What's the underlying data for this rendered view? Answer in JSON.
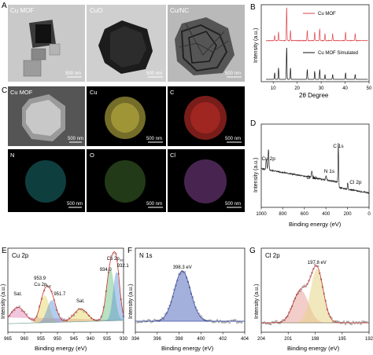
{
  "colors": {
    "xrd_mof": "#e0434b",
    "xrd_sim": "#111111",
    "xps_fit": "#222222",
    "cu_map": "#d4c64a",
    "c_map": "#c8302a",
    "n_map": "#2ab1b5",
    "o_map": "#6fbf4d",
    "cl_map": "#b35cc9",
    "n1s_fill": "#5a6fc0",
    "cl_fill_a": "#e8a5a0",
    "cl_fill_b": "#e9d68a",
    "cu_fill_pink": "#e27fb5",
    "cu_fill_yellow": "#e3d35a",
    "cu_fill_blue": "#5b8fd8",
    "cu_fill_green": "#63c07a"
  },
  "panels": {
    "A": {
      "letter": "A",
      "images": [
        {
          "label": "Cu MOF",
          "scale": "500 nm"
        },
        {
          "label": "CuO",
          "scale": "500 nm"
        },
        {
          "label": "Cu/NC",
          "scale": "500 nm"
        }
      ]
    },
    "C": {
      "letter": "C",
      "maps": [
        {
          "label": "Cu MOF",
          "scale": "500 nm"
        },
        {
          "label": "Cu",
          "scale": "500 nm"
        },
        {
          "label": "C",
          "scale": "500 nm"
        },
        {
          "label": "N",
          "scale": "500 nm"
        },
        {
          "label": "O",
          "scale": "500 nm"
        },
        {
          "label": "Cl",
          "scale": "500 nm"
        }
      ]
    }
  },
  "chart_data": [
    {
      "panel": "B",
      "type": "line",
      "xlabel": "2θ Degree",
      "ylabel": "Intensity (a.u.)",
      "xlim": [
        5,
        50
      ],
      "xticks": [
        "10",
        "20",
        "30",
        "40",
        "50"
      ],
      "legend": "top-right",
      "series": [
        {
          "name": "Cu MOF",
          "peaks": [
            [
              10.6,
              0.15
            ],
            [
              12.2,
              0.25
            ],
            [
              15.6,
              1.0
            ],
            [
              17.2,
              0.3
            ],
            [
              24.2,
              0.3
            ],
            [
              27.3,
              0.25
            ],
            [
              29.4,
              0.35
            ],
            [
              31.6,
              0.2
            ],
            [
              34.8,
              0.2
            ],
            [
              40.2,
              0.25
            ],
            [
              44.2,
              0.2
            ]
          ]
        },
        {
          "name": "Cu MOF Simulated",
          "peaks": [
            [
              10.6,
              0.2
            ],
            [
              12.2,
              0.35
            ],
            [
              15.6,
              1.0
            ],
            [
              17.2,
              0.35
            ],
            [
              24.2,
              0.3
            ],
            [
              27.3,
              0.25
            ],
            [
              29.4,
              0.3
            ],
            [
              31.6,
              0.15
            ],
            [
              34.8,
              0.15
            ],
            [
              40.2,
              0.2
            ],
            [
              44.2,
              0.15
            ]
          ]
        }
      ]
    },
    {
      "panel": "D",
      "type": "line",
      "xlabel": "Binding energy (eV)",
      "ylabel": "Intensity (a.u.)",
      "xlim": [
        1000,
        0
      ],
      "xticks": [
        "1000",
        "800",
        "600",
        "400",
        "200",
        "0"
      ],
      "annotations": [
        {
          "text": "Cu 2p",
          "x": 933
        },
        {
          "text": "O 1s",
          "x": 531
        },
        {
          "text": "N 1s",
          "x": 398
        },
        {
          "text": "C 1s",
          "x": 285
        },
        {
          "text": "Cl 2p",
          "x": 198
        }
      ]
    },
    {
      "panel": "E",
      "type": "line",
      "title": "Cu 2p",
      "xlabel": "Binding energy (eV)",
      "ylabel": "Intensity (a.u.)",
      "xlim": [
        965,
        930
      ],
      "xticks": [
        "965",
        "960",
        "955",
        "950",
        "945",
        "940",
        "935",
        "930"
      ],
      "peaks": [
        {
          "center": 962.0,
          "height": 0.25,
          "label": "Sat."
        },
        {
          "center": 953.9,
          "height": 0.42,
          "label": "953.9"
        },
        {
          "center": 951.7,
          "height": 0.34,
          "label": "951.7"
        },
        {
          "center": 943.0,
          "height": 0.2,
          "label": "Sat."
        },
        {
          "center": 934.0,
          "height": 0.8,
          "label": "934.0"
        },
        {
          "center": 932.1,
          "height": 0.75,
          "label": "932.1"
        }
      ],
      "annotations": [
        {
          "text": "Cu 2p",
          "sub": "1/2"
        },
        {
          "text": "Cu 2p",
          "sub": "3/2"
        }
      ]
    },
    {
      "panel": "F",
      "type": "line",
      "title": "N 1s",
      "xlabel": "Binding energy (eV)",
      "ylabel": "Intensity (a.u.)",
      "xlim": [
        394,
        404
      ],
      "xticks": [
        "394",
        "396",
        "398",
        "400",
        "402",
        "404"
      ],
      "peaks": [
        {
          "center": 398.3,
          "height": 1.0,
          "label": "398.3 eV"
        }
      ]
    },
    {
      "panel": "G",
      "type": "line",
      "title": "Cl 2p",
      "xlabel": "Binding energy (eV)",
      "ylabel": "Intensity (a.u.)",
      "xlim": [
        204,
        192
      ],
      "xticks": [
        "204",
        "201",
        "198",
        "195",
        "192"
      ],
      "peaks": [
        {
          "center": 199.6,
          "height": 0.6,
          "label": ""
        },
        {
          "center": 197.8,
          "height": 1.0,
          "label": "197.8 eV"
        }
      ]
    }
  ]
}
